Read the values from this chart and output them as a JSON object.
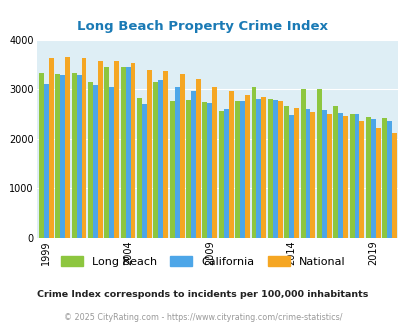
{
  "title": "Long Beach Property Crime Index",
  "title_color": "#1a7ab5",
  "background_color": "#deeef5",
  "fig_background": "#ffffff",
  "years": [
    1999,
    2000,
    2001,
    2002,
    2003,
    2004,
    2005,
    2006,
    2007,
    2008,
    2009,
    2010,
    2011,
    2012,
    2013,
    2014,
    2015,
    2016,
    2017,
    2018,
    2019,
    2020
  ],
  "long_beach": [
    3330,
    3300,
    3335,
    3150,
    3440,
    3450,
    2830,
    3150,
    2750,
    2780,
    2730,
    2550,
    2750,
    3050,
    2800,
    2650,
    3005,
    3000,
    2660,
    2500,
    2440,
    2410
  ],
  "california": [
    3100,
    3280,
    3280,
    3080,
    3050,
    3450,
    2700,
    3180,
    3050,
    2960,
    2720,
    2600,
    2760,
    2800,
    2780,
    2470,
    2600,
    2570,
    2520,
    2490,
    2390,
    2360
  ],
  "national": [
    3620,
    3650,
    3620,
    3570,
    3570,
    3530,
    3380,
    3370,
    3300,
    3210,
    3050,
    2970,
    2890,
    2840,
    2750,
    2610,
    2530,
    2490,
    2460,
    2360,
    2220,
    2110
  ],
  "long_beach_color": "#8dc63f",
  "california_color": "#4da6e8",
  "national_color": "#f5a623",
  "ylim": [
    0,
    4000
  ],
  "yticks": [
    0,
    1000,
    2000,
    3000,
    4000
  ],
  "tick_years": [
    1999,
    2004,
    2009,
    2014,
    2019
  ],
  "footnote1": "Crime Index corresponds to incidents per 100,000 inhabitants",
  "footnote2": "© 2025 CityRating.com - https://www.cityrating.com/crime-statistics/",
  "legend_labels": [
    "Long Beach",
    "California",
    "National"
  ]
}
